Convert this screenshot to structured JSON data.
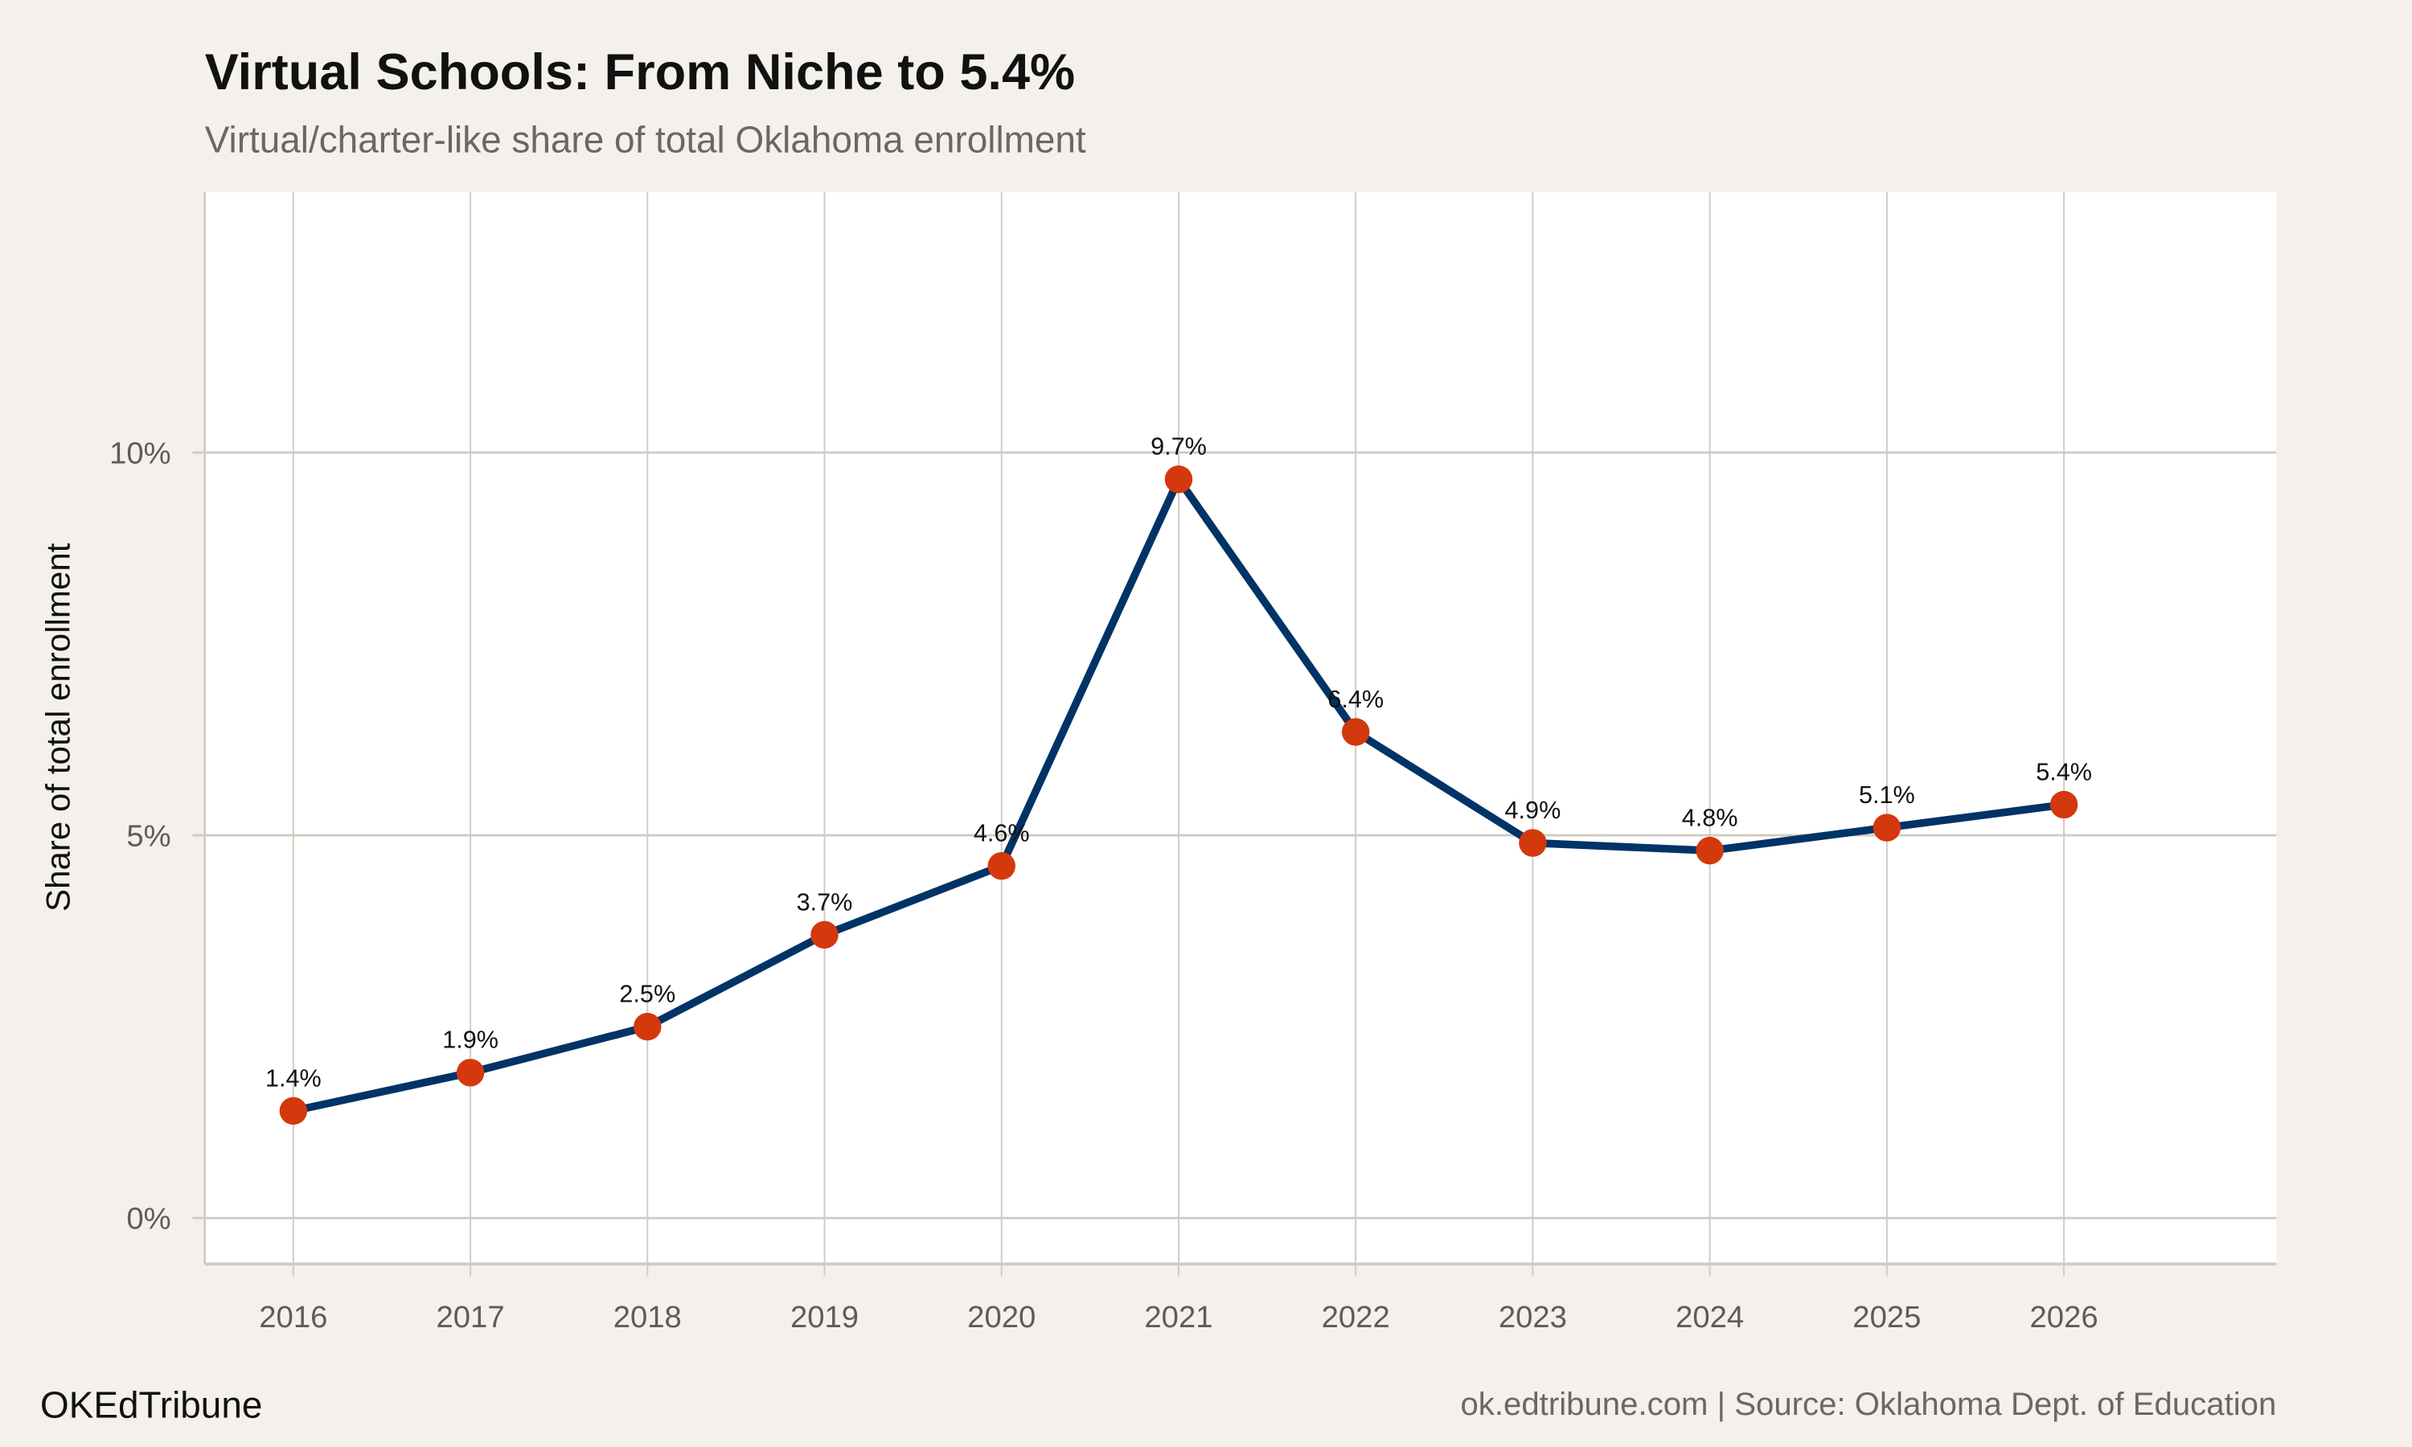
{
  "title": "Virtual Schools: From Niche to 5.4%",
  "subtitle": "Virtual/charter-like share of total Oklahoma enrollment",
  "brand": "OKEdTribune",
  "source": "ok.edtribune.com | Source: Oklahoma Dept. of Education",
  "colors": {
    "background": "#f4f1ec",
    "panel": "#ffffff",
    "grid": "#d0cbc3",
    "line": "#003366",
    "points": "#d4380d"
  },
  "chart_data": {
    "type": "line",
    "title": "Virtual Schools: From Niche to 5.4%",
    "subtitle": "Virtual/charter-like share of total Oklahoma enrollment",
    "xlabel": "",
    "ylabel": "Share of total enrollment",
    "x": [
      2016,
      2017,
      2018,
      2019,
      2020,
      2021,
      2022,
      2023,
      2024,
      2025,
      2026
    ],
    "values": [
      1.4,
      1.9,
      2.5,
      3.7,
      4.6,
      9.65,
      6.35,
      4.9,
      4.8,
      5.1,
      5.4
    ],
    "data_labels": [
      "1.4%",
      "1.9%",
      "2.5%",
      "3.7%",
      "4.6%",
      "9.7%",
      "6.4%",
      "4.9%",
      "4.8%",
      "5.1%",
      "5.4%"
    ],
    "x_ticks": [
      "2016",
      "2017",
      "2018",
      "2019",
      "2020",
      "2021",
      "2022",
      "2023",
      "2024",
      "2025",
      "2026"
    ],
    "y_ticks": [
      {
        "value": 0,
        "label": "0%"
      },
      {
        "value": 5,
        "label": "5%"
      },
      {
        "value": 10,
        "label": "10%"
      }
    ],
    "xlim": [
      2015.5,
      2027.2
    ],
    "ylim": [
      -0.6,
      13.4
    ],
    "grid": true,
    "legend": "none"
  }
}
